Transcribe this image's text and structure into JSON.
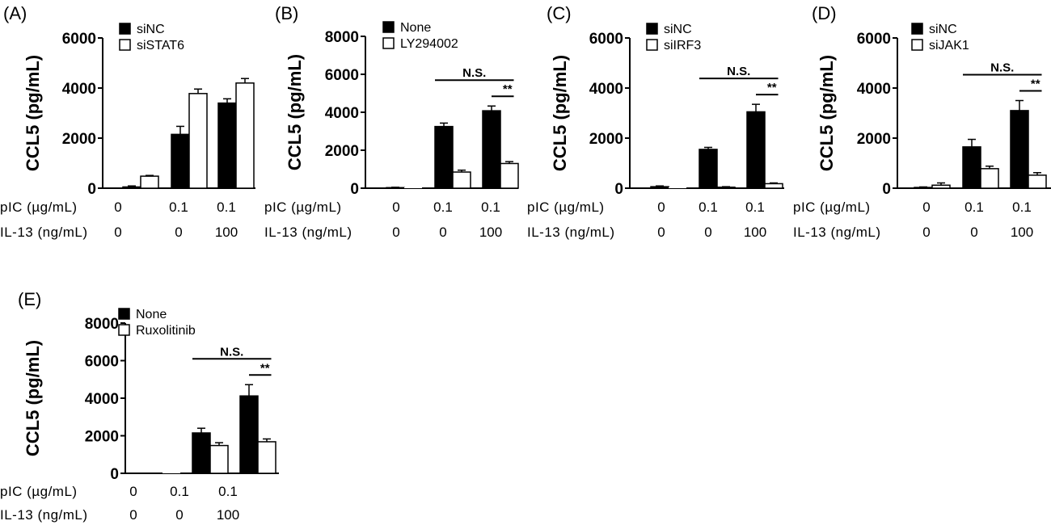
{
  "chart_data": [
    {
      "panel": "(A)",
      "type": "bar",
      "ylabel": "CCL5 (pg/mL)",
      "ylim": [
        0,
        6000
      ],
      "yticks": [
        0,
        2000,
        4000,
        6000
      ],
      "conditions": {
        "rows": [
          {
            "label": "pIC (µg/mL)",
            "values": [
              "0",
              "0.1",
              "0.1"
            ]
          },
          {
            "label": "IL-13 (ng/mL)",
            "values": [
              "0",
              "0",
              "100"
            ]
          }
        ]
      },
      "series": [
        {
          "name": "siNC",
          "fill": "#000000",
          "values": [
            50,
            2150,
            3400
          ],
          "errors": [
            40,
            320,
            170
          ]
        },
        {
          "name": "siSTAT6",
          "fill": "#ffffff",
          "values": [
            480,
            3780,
            4200
          ],
          "errors": [
            30,
            180,
            180
          ]
        }
      ],
      "significance": []
    },
    {
      "panel": "(B)",
      "type": "bar",
      "ylabel": "CCL5 (pg/mL)",
      "ylim": [
        0,
        8000
      ],
      "yticks": [
        0,
        2000,
        4000,
        6000,
        8000
      ],
      "conditions": {
        "rows": [
          {
            "label": "pIC (µg/mL)",
            "values": [
              "0",
              "0.1",
              "0.1"
            ]
          },
          {
            "label": "IL-13 (ng/mL)",
            "values": [
              "0",
              "0",
              "100"
            ]
          }
        ]
      },
      "series": [
        {
          "name": "None",
          "fill": "#000000",
          "values": [
            30,
            3250,
            4080
          ],
          "errors": [
            20,
            180,
            250
          ]
        },
        {
          "name": "LY294002",
          "fill": "#ffffff",
          "values": [
            0,
            850,
            1300
          ],
          "errors": [
            0,
            100,
            100
          ]
        }
      ],
      "significance": [
        {
          "label": "N.S.",
          "from": 1,
          "to": 2,
          "level": 1
        },
        {
          "label": "**",
          "from": 2,
          "to": 2,
          "level": 0
        }
      ]
    },
    {
      "panel": "(C)",
      "type": "bar",
      "ylabel": "CCL5 (pg/mL)",
      "ylim": [
        0,
        6000
      ],
      "yticks": [
        0,
        2000,
        4000,
        6000
      ],
      "conditions": {
        "rows": [
          {
            "label": "pIC (µg/mL)",
            "values": [
              "0",
              "0.1",
              "0.1"
            ]
          },
          {
            "label": "IL-13 (ng/mL)",
            "values": [
              "0",
              "0",
              "100"
            ]
          }
        ]
      },
      "series": [
        {
          "name": "siNC",
          "fill": "#000000",
          "values": [
            60,
            1550,
            3050
          ],
          "errors": [
            30,
            80,
            300
          ]
        },
        {
          "name": "siIRF3",
          "fill": "#ffffff",
          "values": [
            0,
            40,
            180
          ],
          "errors": [
            0,
            20,
            30
          ]
        }
      ],
      "significance": [
        {
          "label": "N.S.",
          "from": 1,
          "to": 2,
          "level": 1
        },
        {
          "label": "**",
          "from": 2,
          "to": 2,
          "level": 0
        }
      ]
    },
    {
      "panel": "(D)",
      "type": "bar",
      "ylabel": "CCL5 (pg/mL)",
      "ylim": [
        0,
        6000
      ],
      "yticks": [
        0,
        2000,
        4000,
        6000
      ],
      "conditions": {
        "rows": [
          {
            "label": "pIC (µg/mL)",
            "values": [
              "0",
              "0.1",
              "0.1"
            ]
          },
          {
            "label": "IL-13 (ng/mL)",
            "values": [
              "0",
              "0",
              "100"
            ]
          }
        ]
      },
      "series": [
        {
          "name": "siNC",
          "fill": "#000000",
          "values": [
            30,
            1650,
            3100
          ],
          "errors": [
            20,
            300,
            400
          ]
        },
        {
          "name": "siJAK1",
          "fill": "#ffffff",
          "values": [
            120,
            780,
            520
          ],
          "errors": [
            90,
            100,
            100
          ]
        }
      ],
      "significance": [
        {
          "label": "N.S.",
          "from": 1,
          "to": 2,
          "level": 1
        },
        {
          "label": "**",
          "from": 2,
          "to": 2,
          "level": 0
        }
      ]
    },
    {
      "panel": "(E)",
      "type": "bar",
      "ylabel": "CCL5 (pg/mL)",
      "ylim": [
        0,
        8000
      ],
      "yticks": [
        0,
        2000,
        4000,
        6000,
        8000
      ],
      "conditions": {
        "rows": [
          {
            "label": "pIC (µg/mL)",
            "values": [
              "0",
              "0.1",
              "0.1"
            ]
          },
          {
            "label": "IL-13 (ng/mL)",
            "values": [
              "0",
              "0",
              "100"
            ]
          }
        ]
      },
      "series": [
        {
          "name": "None",
          "fill": "#000000",
          "values": [
            0,
            2150,
            4120
          ],
          "errors": [
            0,
            250,
            600
          ]
        },
        {
          "name": "Ruxolitinib",
          "fill": "#ffffff",
          "values": [
            0,
            1480,
            1680
          ],
          "errors": [
            0,
            150,
            150
          ]
        }
      ],
      "significance": [
        {
          "label": "N.S.",
          "from": 1,
          "to": 2,
          "level": 1
        },
        {
          "label": "**",
          "from": 2,
          "to": 2,
          "level": 0
        }
      ]
    }
  ]
}
